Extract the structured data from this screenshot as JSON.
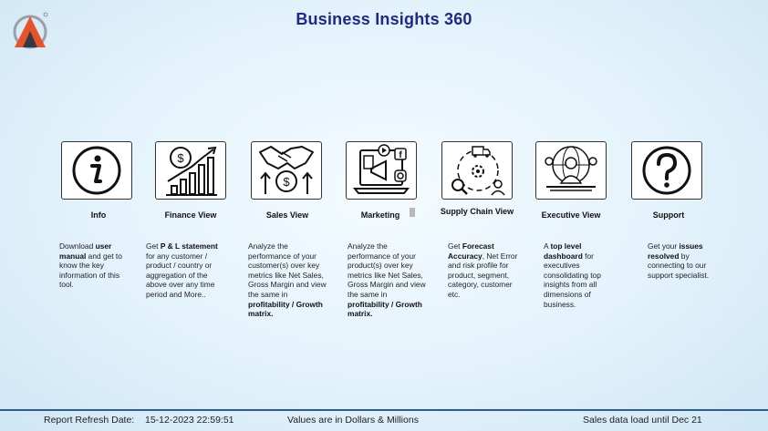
{
  "header": {
    "title": "Business Insights 360"
  },
  "tiles": [
    {
      "label": "Info",
      "icon": "info-icon",
      "desc": [
        {
          "t": "Download ",
          "b": false
        },
        {
          "t": "user manual",
          "b": true
        },
        {
          "t": " and get to know the key information of this tool.",
          "b": false
        }
      ]
    },
    {
      "label": "Finance View",
      "icon": "finance-chart-icon",
      "desc": [
        {
          "t": "Get  ",
          "b": false
        },
        {
          "t": "P & L statement",
          "b": true
        },
        {
          "t": " for any customer / product / country or aggregation of the above over any time period and More..",
          "b": false
        }
      ]
    },
    {
      "label": "Sales View",
      "icon": "handshake-dollar-icon",
      "desc": [
        {
          "t": "Analyze the performance of your customer(s) over key metrics like Net Sales, Gross Margin and view the same in ",
          "b": false
        },
        {
          "t": "profitability / Growth matrix.",
          "b": true
        }
      ]
    },
    {
      "label": "Marketing",
      "icon": "marketing-megaphone-icon",
      "desc": [
        {
          "t": "Analyze the performance of your product(s) over key metrics like Net Sales, Gross Margin and view the same in ",
          "b": false
        },
        {
          "t": "profitability / Growth matrix.",
          "b": true
        }
      ]
    },
    {
      "label": "Supply Chain View",
      "icon": "supply-chain-icon",
      "desc": [
        {
          "t": "Get ",
          "b": false
        },
        {
          "t": "Forecast Accuracy",
          "b": true
        },
        {
          "t": ", Net Error and risk profile for product, segment, category, customer etc.",
          "b": false
        }
      ]
    },
    {
      "label": "Executive View",
      "icon": "executive-icon",
      "desc": [
        {
          "t": "A ",
          "b": false
        },
        {
          "t": "top level dashboard",
          "b": true
        },
        {
          "t": " for executives consolidating top insights from all dimensions of business.",
          "b": false
        }
      ]
    },
    {
      "label": "Support",
      "icon": "question-icon",
      "desc": [
        {
          "t": "Get your ",
          "b": false
        },
        {
          "t": "issues resolved",
          "b": true
        },
        {
          "t": " by connecting to our support specialist.",
          "b": false
        }
      ]
    }
  ],
  "footer": {
    "refresh_label": "Report Refresh Date:",
    "refresh_value": "15-12-2023 22:59:51",
    "units": "Values are in Dollars & Millions",
    "sales_load": "Sales data load until Dec 21"
  },
  "colors": {
    "title": "#1c2a8c",
    "footer_line": "#2a5d9f",
    "logo_orange": "#e8532a"
  }
}
